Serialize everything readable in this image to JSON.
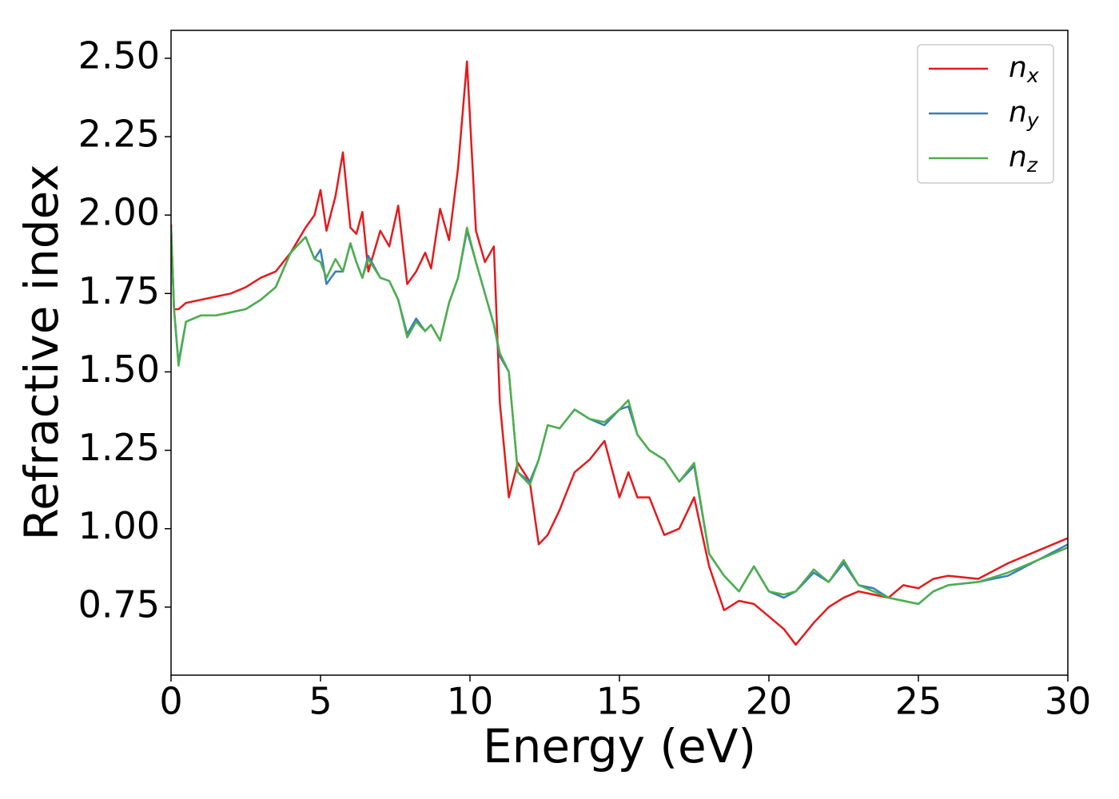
{
  "chart_data": {
    "type": "line",
    "x_label": "Energy (eV)",
    "y_label": "Refractive index",
    "x": [
      0,
      0.1,
      0.25,
      0.5,
      1,
      1.5,
      2,
      2.5,
      3,
      3.5,
      4,
      4.5,
      4.8,
      5.0,
      5.2,
      5.5,
      5.75,
      6.0,
      6.2,
      6.4,
      6.6,
      7.0,
      7.3,
      7.6,
      7.9,
      8.2,
      8.5,
      8.7,
      9.0,
      9.3,
      9.6,
      9.9,
      10.2,
      10.5,
      10.8,
      11.0,
      11.3,
      11.6,
      12.0,
      12.3,
      12.6,
      13.0,
      13.5,
      14.0,
      14.5,
      15.0,
      15.3,
      15.6,
      16.0,
      16.5,
      17.0,
      17.5,
      18.0,
      18.5,
      19.0,
      19.5,
      20.0,
      20.5,
      20.9,
      21.5,
      22.0,
      22.5,
      23.0,
      23.5,
      24.0,
      24.5,
      25.0,
      25.5,
      26.0,
      27.0,
      28.0,
      29.0,
      30.0
    ],
    "series": [
      {
        "name": "n_x",
        "color": "#e41a1c",
        "values": [
          1.97,
          1.7,
          1.7,
          1.72,
          1.73,
          1.74,
          1.75,
          1.77,
          1.8,
          1.82,
          1.88,
          1.96,
          2.0,
          2.08,
          1.95,
          2.06,
          2.2,
          1.96,
          1.94,
          2.01,
          1.82,
          1.95,
          1.9,
          2.03,
          1.78,
          1.82,
          1.88,
          1.83,
          2.02,
          1.92,
          2.15,
          2.49,
          1.95,
          1.85,
          1.9,
          1.4,
          1.1,
          1.21,
          1.15,
          0.95,
          0.98,
          1.06,
          1.18,
          1.22,
          1.28,
          1.1,
          1.18,
          1.1,
          1.1,
          0.98,
          1.0,
          1.1,
          0.88,
          0.74,
          0.77,
          0.76,
          0.72,
          0.68,
          0.63,
          0.7,
          0.75,
          0.78,
          0.8,
          0.79,
          0.78,
          0.82,
          0.81,
          0.84,
          0.85,
          0.84,
          0.89,
          0.93,
          0.97
        ]
      },
      {
        "name": "n_y",
        "color": "#377eb8",
        "values": [
          1.96,
          1.7,
          1.53,
          1.66,
          1.68,
          1.68,
          1.69,
          1.7,
          1.73,
          1.77,
          1.88,
          1.93,
          1.86,
          1.89,
          1.78,
          1.82,
          1.82,
          1.91,
          1.85,
          1.8,
          1.87,
          1.8,
          1.79,
          1.73,
          1.62,
          1.67,
          1.63,
          1.65,
          1.6,
          1.72,
          1.8,
          1.95,
          1.85,
          1.75,
          1.65,
          1.55,
          1.5,
          1.18,
          1.15,
          1.22,
          1.33,
          1.32,
          1.38,
          1.35,
          1.33,
          1.38,
          1.39,
          1.3,
          1.25,
          1.22,
          1.15,
          1.2,
          0.92,
          0.85,
          0.8,
          0.88,
          0.8,
          0.78,
          0.8,
          0.86,
          0.83,
          0.89,
          0.82,
          0.81,
          0.78,
          0.77,
          0.76,
          0.8,
          0.82,
          0.83,
          0.85,
          0.9,
          0.95
        ]
      },
      {
        "name": "n_z",
        "color": "#4daf4a",
        "values": [
          1.96,
          1.7,
          1.52,
          1.66,
          1.68,
          1.68,
          1.69,
          1.7,
          1.73,
          1.77,
          1.88,
          1.93,
          1.86,
          1.85,
          1.8,
          1.86,
          1.82,
          1.91,
          1.85,
          1.8,
          1.86,
          1.8,
          1.79,
          1.73,
          1.61,
          1.66,
          1.63,
          1.65,
          1.6,
          1.72,
          1.8,
          1.96,
          1.85,
          1.75,
          1.65,
          1.56,
          1.5,
          1.18,
          1.14,
          1.22,
          1.33,
          1.32,
          1.38,
          1.35,
          1.34,
          1.38,
          1.41,
          1.3,
          1.25,
          1.22,
          1.15,
          1.21,
          0.92,
          0.85,
          0.8,
          0.88,
          0.8,
          0.79,
          0.8,
          0.87,
          0.83,
          0.9,
          0.82,
          0.8,
          0.78,
          0.77,
          0.76,
          0.8,
          0.82,
          0.83,
          0.86,
          0.9,
          0.94
        ]
      }
    ],
    "xlim": [
      0,
      30
    ],
    "xticks": [
      0,
      5,
      10,
      15,
      20,
      25,
      30
    ],
    "ylim": [
      0.533,
      2.589
    ],
    "yticks": [
      {
        "value": 0.75,
        "label": "0.75"
      },
      {
        "value": 1.0,
        "label": "1.00"
      },
      {
        "value": 1.25,
        "label": "1.25"
      },
      {
        "value": 1.5,
        "label": "1.50"
      },
      {
        "value": 1.75,
        "label": "1.75"
      },
      {
        "value": 2.0,
        "label": "2.00"
      },
      {
        "value": 2.25,
        "label": "2.25"
      },
      {
        "value": 2.5,
        "label": "2.50"
      }
    ],
    "legend": "upper right",
    "grid": false
  }
}
